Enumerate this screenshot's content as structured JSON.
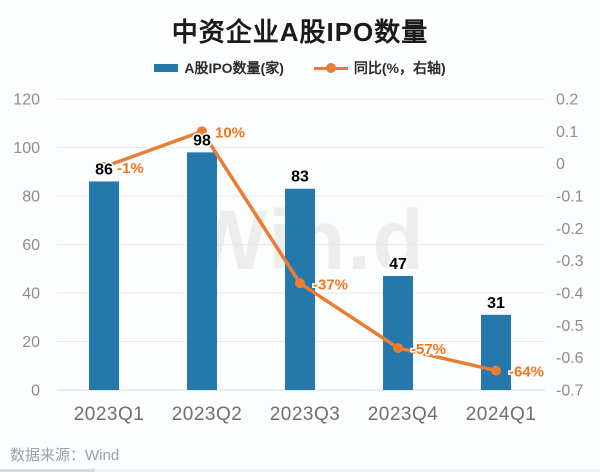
{
  "title": "中资企业A股IPO数量",
  "legend": {
    "bar_label": "A股IPO数量(家)",
    "line_label": "同比(%，右轴)"
  },
  "watermark": "Win.d",
  "footer": {
    "source": "数据来源：Wind"
  },
  "colors": {
    "bar": "#2478ab",
    "line": "#ea7d33",
    "pct_label": "#f0761a",
    "value_label": "#000000",
    "grid": "#e8e8e8",
    "axis_line": "#d9d9d9",
    "y_tick": "#8d8d8d",
    "x_tick": "#6f6f6f"
  },
  "chart_data": {
    "type": "bar",
    "subtype": "bar+line dual axis",
    "title": "中资企业A股IPO数量",
    "categories": [
      "2023Q1",
      "2023Q2",
      "2023Q3",
      "2023Q4",
      "2024Q1"
    ],
    "series": [
      {
        "name": "A股IPO数量(家)",
        "type": "bar",
        "axis": "left",
        "values": [
          86,
          98,
          83,
          47,
          31
        ],
        "value_labels": [
          "86",
          "98",
          "83",
          "47",
          "31"
        ]
      },
      {
        "name": "同比(%，右轴)",
        "type": "line",
        "axis": "right",
        "values": [
          -0.01,
          0.1,
          -0.37,
          -0.57,
          -0.64
        ],
        "value_labels": [
          "-1%",
          "10%",
          "-37%",
          "-57%",
          "-64%"
        ]
      }
    ],
    "left_axis": {
      "range": [
        0,
        120
      ],
      "tick_values": [
        0,
        20,
        40,
        60,
        80,
        100,
        120
      ],
      "tick_labels": [
        "0",
        "20",
        "40",
        "60",
        "80",
        "100",
        "120"
      ]
    },
    "right_axis": {
      "range": [
        -0.7,
        0.2
      ],
      "tick_values": [
        0.2,
        0.1,
        0,
        -0.1,
        -0.2,
        -0.3,
        -0.4,
        -0.5,
        -0.6,
        -0.7
      ],
      "tick_labels": [
        "0.2",
        "0.1",
        "0",
        "-0.1",
        "-0.2",
        "-0.3",
        "-0.4",
        "-0.5",
        "-0.6",
        "-0.7"
      ]
    },
    "grid": true,
    "legend_position": "top"
  }
}
